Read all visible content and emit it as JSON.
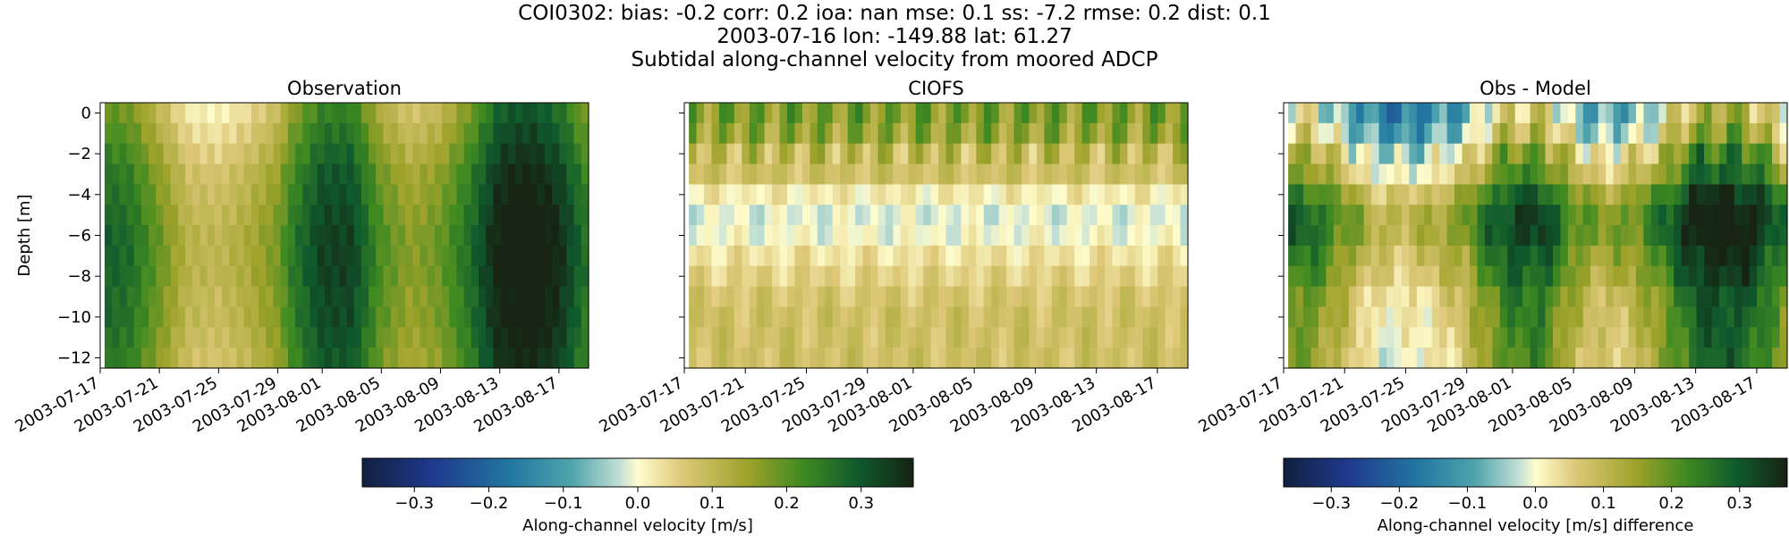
{
  "figure": {
    "title_lines": [
      "COI0302: bias: -0.2  corr: 0.2  ioa: nan  mse: 0.1  ss: -7.2  rmse: 0.2  dist: 0.1",
      "2003-07-16 lon: -149.88 lat: 61.27",
      "Subtidal along-channel velocity from moored ADCP"
    ]
  },
  "chart_data": [
    {
      "type": "heatmap",
      "title": "Observation",
      "ylabel": "Depth [m]",
      "xlabel": "",
      "x_start": "2003-07-17",
      "x_end": "2003-08-19",
      "n_days": 33,
      "x_tick_labels": [
        "2003-07-17",
        "2003-07-21",
        "2003-07-25",
        "2003-07-29",
        "2003-08-01",
        "2003-08-05",
        "2003-08-09",
        "2003-08-13",
        "2003-08-17"
      ],
      "x_tick_days": [
        0,
        4,
        8,
        12,
        15,
        19,
        23,
        27,
        31
      ],
      "y_ticks": [
        0,
        -2,
        -4,
        -6,
        -8,
        -10,
        -12
      ],
      "ylim": [
        -12.5,
        0.5
      ],
      "data_x_range_days": [
        0.3,
        33.0
      ],
      "depth_bin_edges": [
        0.5,
        -0.5,
        -1.5,
        -2.5,
        -3.5,
        -4.5,
        -5.5,
        -6.5,
        -7.5,
        -8.5,
        -9.5,
        -10.5,
        -11.5,
        -12.5
      ],
      "time_profile_days": [
        0,
        2,
        4,
        6,
        8,
        10,
        12,
        13,
        15,
        17,
        19,
        21,
        23,
        25,
        27,
        29,
        31,
        33
      ],
      "time_profile_values": [
        0.26,
        0.24,
        0.16,
        0.08,
        0.07,
        0.1,
        0.15,
        0.22,
        0.3,
        0.3,
        0.18,
        0.13,
        0.16,
        0.24,
        0.35,
        0.37,
        0.33,
        0.22
      ],
      "depth_offsets": [
        -0.06,
        -0.04,
        -0.02,
        0.0,
        0.01,
        0.02,
        0.03,
        0.03,
        0.03,
        0.02,
        0.02,
        0.01,
        0.0
      ],
      "colorbar_shared": true
    },
    {
      "type": "heatmap",
      "title": "CIOFS",
      "ylabel": "",
      "xlabel": "",
      "x_start": "2003-07-17",
      "x_end": "2003-08-19",
      "n_days": 33,
      "x_tick_labels": [
        "2003-07-17",
        "2003-07-21",
        "2003-07-25",
        "2003-07-29",
        "2003-08-01",
        "2003-08-05",
        "2003-08-09",
        "2003-08-13",
        "2003-08-17"
      ],
      "x_tick_days": [
        0,
        4,
        8,
        12,
        15,
        19,
        23,
        27,
        31
      ],
      "y_ticks": [
        0,
        -2,
        -4,
        -6,
        -8,
        -10,
        -12
      ],
      "y_tick_labels_shown": false,
      "ylim": [
        -12.5,
        0.5
      ],
      "data_x_range_days": [
        0.3,
        33.0
      ],
      "depth_bin_edges": [
        0.5,
        -0.5,
        -1.5,
        -2.5,
        -3.5,
        -4.5,
        -5.5,
        -6.5,
        -7.5,
        -8.5,
        -9.5,
        -10.5,
        -11.5,
        -12.5
      ],
      "depth_profile_values": [
        0.17,
        0.15,
        0.1,
        0.08,
        0.02,
        -0.01,
        0.0,
        0.03,
        0.05,
        0.07,
        0.08,
        0.08,
        0.08
      ],
      "surface_variability": 0.06,
      "colorbar_shared": true
    },
    {
      "type": "heatmap",
      "title": "Obs - Model",
      "ylabel": "",
      "xlabel": "",
      "x_start": "2003-07-17",
      "x_end": "2003-08-19",
      "n_days": 33,
      "x_tick_labels": [
        "2003-07-17",
        "2003-07-21",
        "2003-07-25",
        "2003-07-29",
        "2003-08-01",
        "2003-08-05",
        "2003-08-09",
        "2003-08-13",
        "2003-08-17"
      ],
      "x_tick_days": [
        0,
        4,
        8,
        12,
        15,
        19,
        23,
        27,
        31
      ],
      "y_ticks": [
        0,
        -2,
        -4,
        -6,
        -8,
        -10,
        -12
      ],
      "y_tick_labels_shown": false,
      "ylim": [
        -12.5,
        0.5
      ],
      "data_x_range_days": [
        0.3,
        33.0
      ],
      "depth_bin_edges": [
        0.5,
        -0.5,
        -1.5,
        -2.5,
        -3.5,
        -4.5,
        -5.5,
        -6.5,
        -7.5,
        -8.5,
        -9.5,
        -10.5,
        -11.5,
        -12.5
      ],
      "difference_of": [
        "Observation",
        "CIOFS"
      ],
      "colorbar": "difference"
    }
  ],
  "colorbars": [
    {
      "label": "Along-channel velocity [m/s]",
      "range": [
        -0.37,
        0.37
      ],
      "ticks": [
        -0.3,
        -0.2,
        -0.1,
        0.0,
        0.1,
        0.2,
        0.3
      ],
      "tick_labels": [
        "−0.3",
        "−0.2",
        "−0.1",
        "0.0",
        "0.1",
        "0.2",
        "0.3"
      ]
    },
    {
      "label": "Along-channel velocity [m/s] difference",
      "range": [
        -0.37,
        0.37
      ],
      "ticks": [
        -0.3,
        -0.2,
        -0.1,
        0.0,
        0.1,
        0.2,
        0.3
      ],
      "tick_labels": [
        "−0.3",
        "−0.2",
        "−0.1",
        "0.0",
        "0.1",
        "0.2",
        "0.3"
      ]
    }
  ],
  "colormap": {
    "name": "cmocean delta",
    "stops": [
      [
        0.0,
        "#112040"
      ],
      [
        0.13,
        "#1f3a8e"
      ],
      [
        0.27,
        "#2278a0"
      ],
      [
        0.38,
        "#4fa4ac"
      ],
      [
        0.47,
        "#c6e1d6"
      ],
      [
        0.5,
        "#fffdcd"
      ],
      [
        0.58,
        "#ddc878"
      ],
      [
        0.7,
        "#9da22a"
      ],
      [
        0.8,
        "#3f8a21"
      ],
      [
        0.9,
        "#0f5a2e"
      ],
      [
        1.0,
        "#172313"
      ]
    ]
  }
}
